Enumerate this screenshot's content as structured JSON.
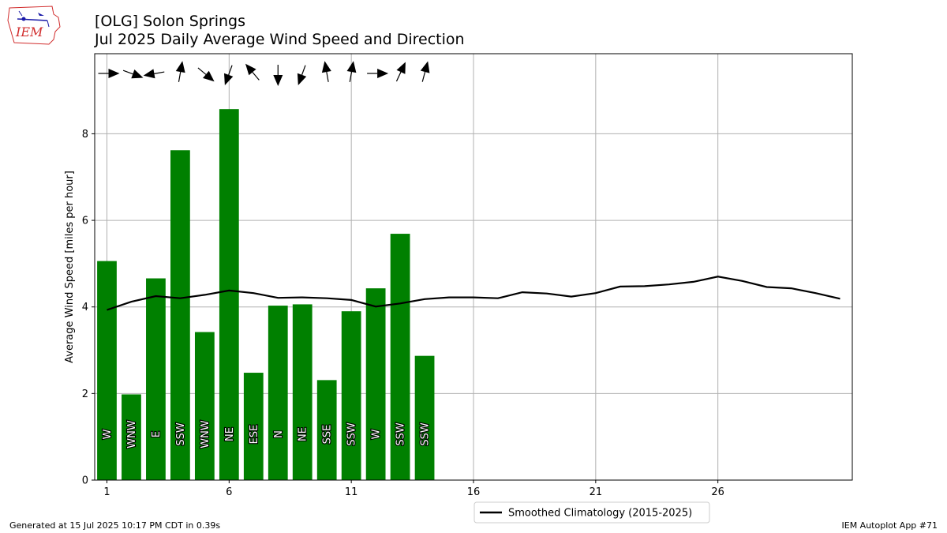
{
  "header": {
    "title_line1": "[OLG] Solon Springs",
    "title_line2": "Jul 2025 Daily Average Wind Speed and Direction",
    "logo_text": "IEM"
  },
  "footer": {
    "left": "Generated at 15 Jul 2025 10:17 PM CDT in 0.39s",
    "right": "IEM Autoplot App #71"
  },
  "colors": {
    "bar": "#008000",
    "climo_line": "#000000",
    "grid": "#b0b0b0",
    "arrow": "#000000",
    "logo_red": "#d12c2c",
    "logo_blue": "#1a1aa8"
  },
  "chart_data": {
    "type": "bar",
    "ylabel": "Average Wind Speed [miles per hour]",
    "xlim": [
      0.5,
      31.5
    ],
    "ylim": [
      0,
      9.85
    ],
    "x_ticks": [
      1,
      6,
      11,
      16,
      21,
      26
    ],
    "y_ticks": [
      0,
      2,
      4,
      6,
      8
    ],
    "grid": true,
    "legend_position": "bottom-center",
    "series": [
      {
        "type": "bar",
        "x": [
          1,
          2,
          3,
          4,
          5,
          6,
          7,
          8,
          9,
          10,
          11,
          12,
          13,
          14
        ],
        "values": [
          5.06,
          1.98,
          4.66,
          7.62,
          3.42,
          8.57,
          2.48,
          4.03,
          4.06,
          2.31,
          3.9,
          4.43,
          5.69,
          2.87
        ],
        "direction_labels": [
          "W",
          "WNW",
          "E",
          "SSW",
          "WNW",
          "NE",
          "ESE",
          "N",
          "NE",
          "SSE",
          "SSW",
          "W",
          "SSW",
          "SSW"
        ],
        "arrow_to_bearing_deg": [
          90,
          110,
          260,
          10,
          130,
          200,
          320,
          180,
          200,
          350,
          10,
          90,
          25,
          15
        ]
      },
      {
        "type": "line",
        "name": "Smoothed Climatology (2015-2025)",
        "x": [
          1,
          2,
          3,
          4,
          5,
          6,
          7,
          8,
          9,
          10,
          11,
          12,
          13,
          14,
          15,
          16,
          17,
          18,
          19,
          20,
          21,
          22,
          23,
          24,
          25,
          26,
          27,
          28,
          29,
          30,
          31
        ],
        "values": [
          3.93,
          4.12,
          4.25,
          4.2,
          4.28,
          4.38,
          4.32,
          4.21,
          4.22,
          4.2,
          4.16,
          4.01,
          4.08,
          4.18,
          4.22,
          4.22,
          4.2,
          4.34,
          4.31,
          4.24,
          4.32,
          4.47,
          4.48,
          4.52,
          4.58,
          4.7,
          4.6,
          4.46,
          4.43,
          4.32,
          4.19
        ]
      }
    ]
  }
}
